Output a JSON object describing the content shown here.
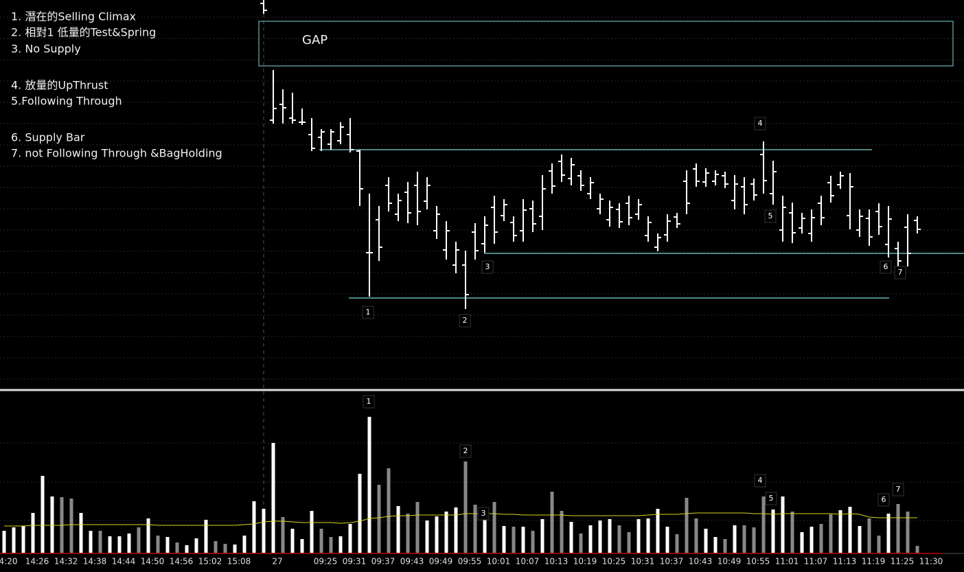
{
  "chart_data": [
    {
      "type": "ohlc",
      "annotations": [
        "1. 潛在的Selling Climax",
        "2. 相對1 低量的Test&Spring",
        "3. No Supply",
        "4. 放量的UpThrust",
        "5.Following Through",
        "6. Supply Bar",
        "7. not Following Through &BagHolding"
      ],
      "gap_label": "GAP",
      "markers": [
        "1",
        "2",
        "3",
        "4",
        "5",
        "6",
        "7"
      ],
      "color": "#ffffff",
      "level_color": "#7fd8d8",
      "levels": [
        342,
        191,
        126
      ],
      "ylim": [
        0,
        560
      ],
      "grid": true,
      "open": [
        null,
        null,
        null,
        null,
        null,
        null,
        null,
        null,
        null,
        null,
        null,
        null,
        null,
        null,
        null,
        null,
        null,
        null,
        null,
        null,
        null,
        null,
        null,
        null,
        null,
        null,
        null,
        555,
        385,
        408,
        388,
        382,
        364,
        360,
        350,
        355,
        364,
        340,
        192,
        240,
        290,
        248,
        280,
        290,
        267,
        224,
        196,
        174,
        174,
        222,
        205,
        258,
        246,
        236,
        224,
        256,
        245,
        311,
        325,
        300,
        304,
        278,
        256,
        240,
        255,
        264,
        248,
        217,
        200,
        218,
        244,
        296,
        314,
        295,
        296,
        304,
        268,
        288,
        292,
        335,
        278,
        225,
        250,
        228,
        220,
        264,
        294,
        291,
        246,
        225,
        242,
        252,
        204,
        198,
        229,
        239,
        null
      ],
      "high": [
        null,
        null,
        null,
        null,
        null,
        null,
        null,
        null,
        null,
        null,
        null,
        null,
        null,
        null,
        null,
        null,
        null,
        null,
        null,
        null,
        null,
        null,
        null,
        null,
        null,
        null,
        null,
        560,
        458,
        430,
        425,
        402,
        388,
        372,
        372,
        382,
        388,
        342,
        278,
        260,
        302,
        278,
        295,
        310,
        302,
        260,
        238,
        208,
        195,
        235,
        245,
        275,
        270,
        245,
        270,
        268,
        305,
        322,
        335,
        330,
        312,
        302,
        278,
        268,
        264,
        275,
        270,
        245,
        220,
        248,
        250,
        312,
        322,
        315,
        312,
        310,
        305,
        302,
        300,
        354,
        326,
        275,
        265,
        250,
        255,
        275,
        304,
        310,
        308,
        255,
        255,
        264,
        260,
        208,
        248,
        245,
        null
      ],
      "low": [
        null,
        null,
        null,
        null,
        null,
        null,
        null,
        null,
        null,
        null,
        null,
        null,
        null,
        null,
        null,
        null,
        null,
        null,
        null,
        null,
        null,
        null,
        null,
        null,
        null,
        null,
        null,
        540,
        380,
        380,
        380,
        378,
        340,
        340,
        342,
        350,
        338,
        260,
        128,
        180,
        252,
        238,
        235,
        232,
        255,
        212,
        182,
        162,
        110,
        182,
        192,
        205,
        238,
        208,
        208,
        222,
        225,
        278,
        295,
        290,
        282,
        270,
        248,
        230,
        228,
        232,
        240,
        208,
        194,
        208,
        228,
        248,
        288,
        288,
        290,
        286,
        255,
        248,
        268,
        278,
        262,
        208,
        206,
        220,
        208,
        232,
        265,
        285,
        226,
        215,
        202,
        218,
        185,
        170,
        172,
        220,
        null
      ],
      "close": [
        null,
        null,
        null,
        null,
        null,
        null,
        null,
        null,
        null,
        null,
        null,
        null,
        null,
        null,
        null,
        null,
        null,
        null,
        null,
        null,
        null,
        null,
        null,
        null,
        null,
        null,
        null,
        545,
        402,
        403,
        385,
        382,
        344,
        368,
        368,
        375,
        342,
        285,
        192,
        200,
        264,
        268,
        250,
        252,
        290,
        248,
        224,
        196,
        131,
        195,
        232,
        222,
        262,
        217,
        254,
        234,
        285,
        289,
        305,
        320,
        290,
        294,
        270,
        258,
        237,
        243,
        262,
        236,
        214,
        238,
        234,
        264,
        296,
        308,
        306,
        292,
        292,
        262,
        276,
        297,
        310,
        258,
        221,
        242,
        243,
        243,
        275,
        304,
        288,
        245,
        215,
        230,
        241,
        180,
        191,
        226,
        null
      ]
    },
    {
      "type": "bar",
      "categories": [
        "4:20",
        null,
        null,
        "14:26",
        null,
        null,
        "14:32",
        null,
        null,
        "14:38",
        null,
        null,
        "14:44",
        null,
        null,
        "14:50",
        null,
        null,
        "14:56",
        null,
        null,
        "15:02",
        null,
        null,
        "15:08",
        null,
        null,
        null,
        "27",
        null,
        null,
        null,
        null,
        "09:25",
        null,
        null,
        "09:31",
        null,
        null,
        "09:37",
        null,
        null,
        "09:43",
        null,
        null,
        "09:49",
        null,
        null,
        "09:55",
        null,
        null,
        "10:01",
        null,
        null,
        "10:07",
        null,
        null,
        "10:13",
        null,
        null,
        "10:19",
        null,
        null,
        "10:25",
        null,
        null,
        "10:31",
        null,
        null,
        "10:37",
        null,
        null,
        "10:43",
        null,
        null,
        "10:49",
        null,
        null,
        "10:55",
        null,
        null,
        "11:01",
        null,
        null,
        "11:07",
        null,
        null,
        "11:13",
        null,
        null,
        "11:19",
        null,
        null,
        "11:25",
        null,
        null,
        "11:30"
      ],
      "values": [
        32,
        37,
        39,
        58,
        112,
        82,
        81,
        79,
        58,
        32,
        32,
        24,
        24,
        28,
        37,
        50,
        25,
        23,
        15,
        11,
        21,
        48,
        17,
        13,
        12,
        25,
        75,
        64,
        160,
        52,
        35,
        20,
        61,
        35,
        23,
        24,
        42,
        115,
        198,
        99,
        123,
        68,
        57,
        74,
        47,
        53,
        60,
        66,
        133,
        70,
        66,
        74,
        39,
        38,
        38,
        32,
        49,
        89,
        61,
        45,
        28,
        40,
        47,
        49,
        40,
        30,
        49,
        50,
        64,
        38,
        27,
        80,
        50,
        35,
        23,
        20,
        40,
        40,
        37,
        82,
        63,
        82,
        60,
        30,
        38,
        42,
        56,
        62,
        67,
        39,
        50,
        25,
        57,
        71,
        60,
        10,
        null
      ],
      "colors": [
        "#fff",
        "#fff",
        "#fff",
        "#fff",
        "#fff",
        "#fff",
        "#888",
        "#888",
        "#fff",
        "#fff",
        "#888",
        "#fff",
        "#fff",
        "#fff",
        "#888",
        "#fff",
        "#888",
        "#fff",
        "#888",
        "#fff",
        "#fff",
        "#fff",
        "#888",
        "#888",
        "#fff",
        "#fff",
        "#fff",
        "#fff",
        "#fff",
        "#888",
        "#fff",
        "#fff",
        "#fff",
        "#888",
        "#888",
        "#fff",
        "#fff",
        "#fff",
        "#fff",
        "#888",
        "#888",
        "#fff",
        "#888",
        "#888",
        "#fff",
        "#fff",
        "#fff",
        "#fff",
        "#888",
        "#888",
        "#fff",
        "#888",
        "#fff",
        "#888",
        "#fff",
        "#888",
        "#fff",
        "#888",
        "#888",
        "#fff",
        "#888",
        "#fff",
        "#fff",
        "#fff",
        "#888",
        "#888",
        "#fff",
        "#fff",
        "#fff",
        "#fff",
        "#888",
        "#888",
        "#888",
        "#fff",
        "#fff",
        "#888",
        "#fff",
        "#888",
        "#888",
        "#888",
        "#fff",
        "#fff",
        "#888",
        "#fff",
        "#fff",
        "#888",
        "#888",
        "#fff",
        "#fff",
        "#fff",
        "#888",
        "#888",
        "#fff",
        "#888",
        "#888",
        "#888",
        null
      ],
      "average": {
        "color": "#d8d820",
        "values": [
          39,
          39,
          39,
          40,
          40,
          40,
          40,
          41,
          41,
          41,
          41,
          41,
          41,
          41,
          41,
          41,
          40,
          40,
          40,
          40,
          40,
          40,
          40,
          40,
          40,
          41,
          42,
          45,
          46,
          46,
          45,
          44,
          44,
          44,
          44,
          43,
          44,
          46,
          50,
          51,
          53,
          54,
          54,
          55,
          55,
          55,
          55,
          55,
          57,
          57,
          57,
          57,
          56,
          56,
          55,
          55,
          55,
          55,
          55,
          54,
          54,
          54,
          54,
          54,
          54,
          54,
          54,
          55,
          56,
          56,
          56,
          57,
          58,
          58,
          58,
          58,
          58,
          58,
          57,
          57,
          56,
          57,
          57,
          57,
          57,
          57,
          57,
          56,
          57,
          56,
          52,
          51,
          51,
          51,
          51,
          51,
          null
        ]
      },
      "ylim": [
        0,
        235
      ],
      "grid": true
    }
  ]
}
